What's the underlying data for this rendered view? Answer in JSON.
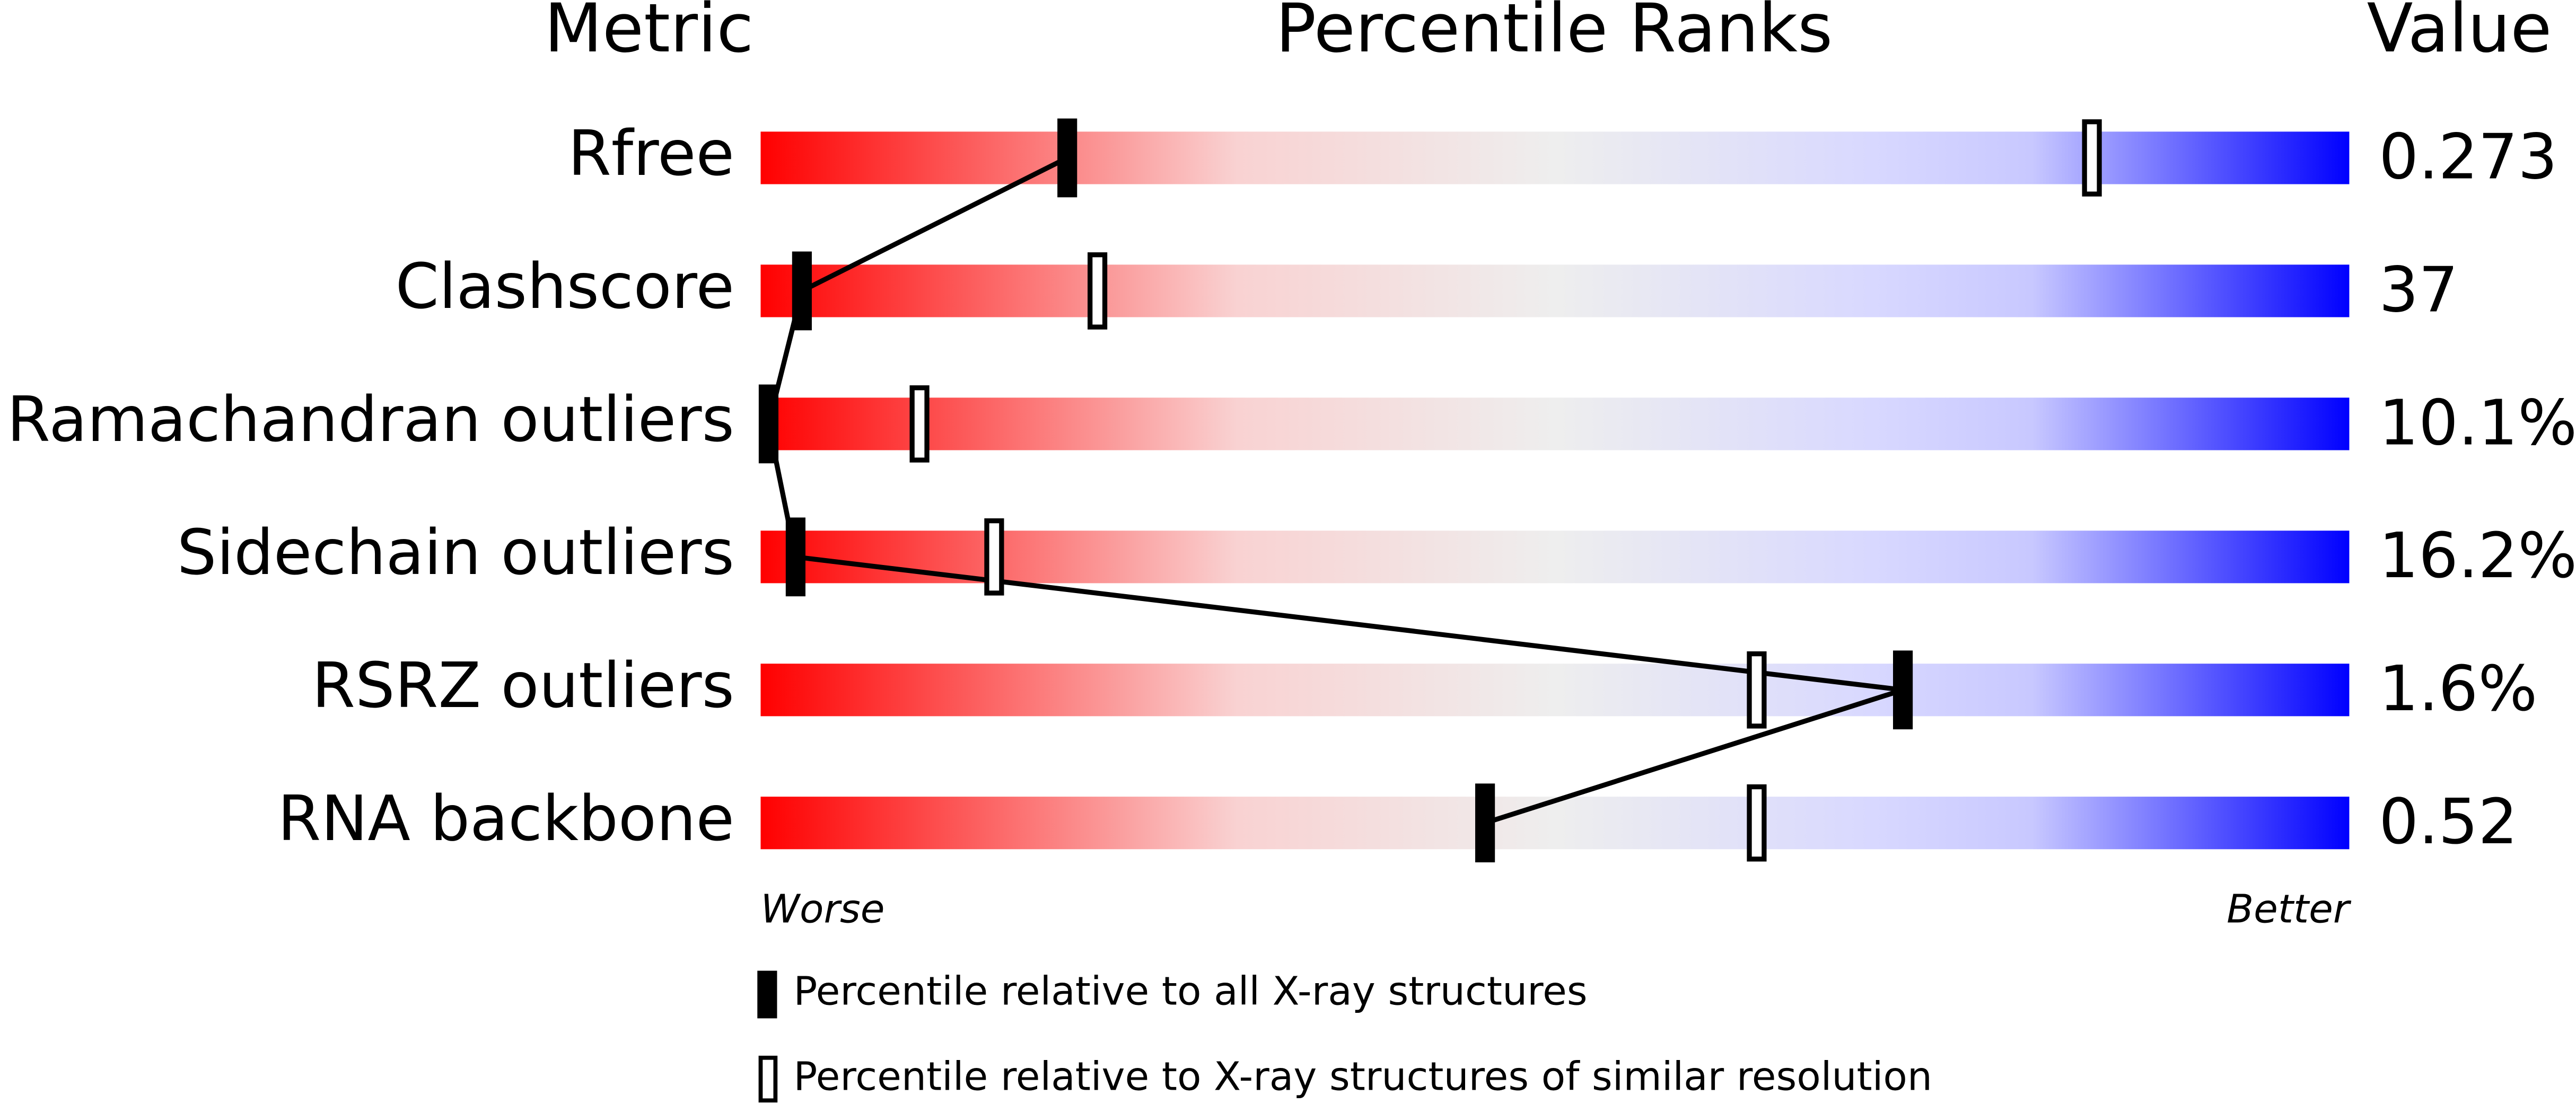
{
  "chart_data": {
    "type": "percentile",
    "column_headers": [
      "Metric",
      "Percentile Ranks",
      "Value"
    ],
    "categories": [
      "Rfree",
      "Clashscore",
      "Ramachandran outliers",
      "Sidechain outliers",
      "RSRZ outliers",
      "RNA backbone"
    ],
    "value_labels": [
      "0.273",
      "37",
      "10.1%",
      "16.2%",
      "1.6%",
      "0.52"
    ],
    "xlim": [
      0,
      100
    ],
    "worse_label": "Worse",
    "better_label": "Better",
    "series": [
      {
        "name": "Percentile relative to all X-ray structures",
        "color": "#000000",
        "marker": "filled",
        "connect": true,
        "values": [
          19.3,
          2.6,
          0.5,
          2.2,
          71.9,
          45.6
        ]
      },
      {
        "name": "Percentile relative to X-ray structures of similar resolution",
        "color": "#000000",
        "marker": "open",
        "connect": false,
        "values": [
          83.8,
          21.2,
          10.0,
          14.7,
          62.7,
          62.7
        ]
      }
    ]
  }
}
